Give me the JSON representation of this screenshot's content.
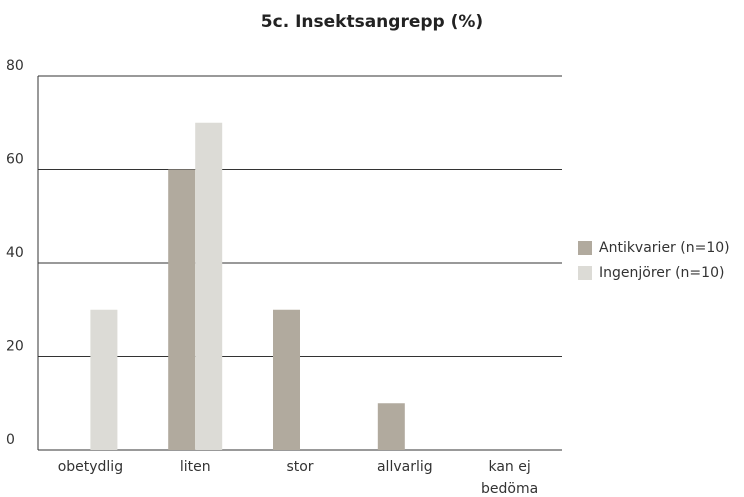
{
  "chart_data": {
    "type": "bar",
    "title": "5c. Insektsangrepp (%)",
    "categories": [
      "obetydlig",
      "liten",
      "stor",
      "allvarlig",
      "kan ej bedöma"
    ],
    "series": [
      {
        "name": "Antikvarier (n=10)",
        "color": "#b1aa9e",
        "values": [
          0,
          60,
          30,
          10,
          0
        ]
      },
      {
        "name": "Ingenjörer (n=10)",
        "color": "#dcdbd6",
        "values": [
          30,
          70,
          0,
          0,
          0
        ]
      }
    ],
    "ylim": [
      0,
      80
    ],
    "yticks": [
      0,
      20,
      40,
      60,
      80
    ],
    "grid": true,
    "legend": "right"
  }
}
